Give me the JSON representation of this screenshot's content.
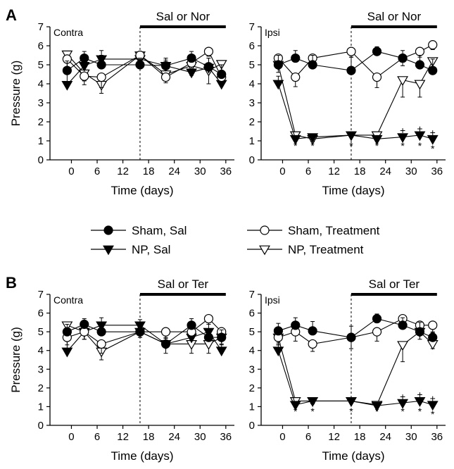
{
  "legend": [
    {
      "series": "sham_sal",
      "label": "Sham, Sal",
      "marker": "circle",
      "fill": "#000000"
    },
    {
      "series": "sham_treat",
      "label": "Sham, Treatment",
      "marker": "circle",
      "fill": "#ffffff"
    },
    {
      "series": "np_sal",
      "label": "NP, Sal",
      "marker": "triangle-down",
      "fill": "#000000"
    },
    {
      "series": "np_treat",
      "label": "NP, Treatment",
      "marker": "triangle-down",
      "fill": "#ffffff"
    }
  ],
  "chart_data": [
    {
      "type": "line",
      "panel": "A",
      "side": "Contra",
      "letter": "A",
      "corner_label": "Contra",
      "treatment_label": "Sal or Nor",
      "treatment_start": 16,
      "treatment_end": 36,
      "xlabel": "Time (days)",
      "ylabel": "Pressure (g)",
      "xlim": [
        -5,
        38
      ],
      "ylim": [
        0,
        7
      ],
      "xticks": [
        0,
        6,
        12,
        18,
        24,
        30,
        36
      ],
      "yticks": [
        0,
        1,
        2,
        3,
        4,
        5,
        6,
        7
      ],
      "x": [
        -1,
        3,
        7,
        16,
        22,
        28,
        32,
        35
      ],
      "series": [
        {
          "key": "sham_sal",
          "values": [
            4.7,
            5.35,
            5.0,
            5.0,
            4.95,
            5.35,
            4.9,
            4.5
          ],
          "errors": [
            0.5,
            0.35,
            0.5,
            0.35,
            0.4,
            0.35,
            0.45,
            0.5
          ]
        },
        {
          "key": "sham_treat",
          "values": [
            5.3,
            4.4,
            4.35,
            5.5,
            4.35,
            5.1,
            5.7,
            4.35
          ],
          "errors": [
            0.45,
            0.45,
            0.55,
            0.35,
            0.3,
            0.4,
            0.25,
            0.45
          ]
        },
        {
          "key": "np_sal",
          "values": [
            3.95,
            4.95,
            5.3,
            5.3,
            4.95,
            4.6,
            4.85,
            4.0
          ],
          "errors": [
            0.7,
            0.5,
            0.45,
            0.35,
            0.3,
            0.45,
            0.5,
            0.35
          ]
        },
        {
          "key": "np_treat",
          "values": [
            5.55,
            4.55,
            3.95,
            5.5,
            4.5,
            4.95,
            4.7,
            5.05
          ],
          "errors": [
            0.3,
            0.4,
            0.45,
            0.4,
            0.35,
            0.5,
            0.7,
            0.35
          ]
        }
      ],
      "annotations": []
    },
    {
      "type": "line",
      "panel": "A",
      "side": "Ipsi",
      "letter": "",
      "corner_label": "Ipsi",
      "treatment_label": "Sal or Nor",
      "treatment_start": 16,
      "treatment_end": 36,
      "xlabel": "Time (days)",
      "ylabel": "",
      "xlim": [
        -5,
        38
      ],
      "ylim": [
        0,
        7
      ],
      "xticks": [
        0,
        6,
        12,
        18,
        24,
        30,
        36
      ],
      "yticks": [
        0,
        1,
        2,
        3,
        4,
        5,
        6,
        7
      ],
      "x": [
        -1,
        3,
        7,
        16,
        22,
        28,
        32,
        35
      ],
      "series": [
        {
          "key": "sham_sal",
          "values": [
            5.0,
            5.35,
            5.0,
            4.7,
            5.7,
            5.35,
            5.0,
            4.7
          ],
          "errors": [
            0.5,
            0.4,
            0.5,
            0.7,
            0.25,
            0.4,
            0.5,
            0.6
          ]
        },
        {
          "key": "sham_treat",
          "values": [
            5.35,
            4.35,
            5.35,
            5.7,
            4.35,
            5.35,
            5.7,
            6.05
          ],
          "errors": [
            0.4,
            0.5,
            0.4,
            0.3,
            0.55,
            0.4,
            0.3,
            0.25
          ]
        },
        {
          "key": "np_sal",
          "values": [
            4.0,
            1.1,
            1.2,
            1.3,
            1.1,
            1.2,
            1.3,
            1.1
          ],
          "errors": [
            0.4,
            0.15,
            0.15,
            0.1,
            0.15,
            0.15,
            0.15,
            0.15
          ]
        },
        {
          "key": "np_treat",
          "values": [
            5.0,
            1.3,
            1.1,
            1.3,
            1.3,
            4.2,
            4.0,
            5.2
          ],
          "errors": [
            0.4,
            0.1,
            0.15,
            0.1,
            0.1,
            0.9,
            0.7,
            0.4
          ]
        }
      ],
      "annotations": [
        {
          "x": 3,
          "y": 0.75,
          "text": "*"
        },
        {
          "x": 7,
          "y": 0.75,
          "text": "*"
        },
        {
          "x": 16,
          "y": 0.75,
          "text": "*"
        },
        {
          "x": 22,
          "y": 0.75,
          "text": "*"
        },
        {
          "x": 28,
          "y": 0.75,
          "text": "*"
        },
        {
          "x": 32,
          "y": 0.75,
          "text": "*"
        },
        {
          "x": 35,
          "y": 0.6,
          "text": "*"
        },
        {
          "x": 28,
          "y": 1.55,
          "text": "+"
        },
        {
          "x": 32,
          "y": 1.65,
          "text": "+"
        },
        {
          "x": 35,
          "y": 1.45,
          "text": "+"
        }
      ]
    },
    {
      "type": "line",
      "panel": "B",
      "side": "Contra",
      "letter": "B",
      "corner_label": "Contra",
      "treatment_label": "Sal or Ter",
      "treatment_start": 16,
      "treatment_end": 36,
      "xlabel": "Time (days)",
      "ylabel": "Pressure (g)",
      "xlim": [
        -5,
        38
      ],
      "ylim": [
        0,
        7
      ],
      "xticks": [
        0,
        6,
        12,
        18,
        24,
        30,
        36
      ],
      "yticks": [
        0,
        1,
        2,
        3,
        4,
        5,
        6,
        7
      ],
      "x": [
        -1,
        3,
        7,
        16,
        22,
        28,
        32,
        35
      ],
      "series": [
        {
          "key": "sham_sal",
          "values": [
            5.0,
            5.4,
            5.0,
            5.0,
            4.35,
            5.35,
            4.7,
            4.7
          ],
          "errors": [
            0.4,
            0.3,
            0.5,
            0.3,
            0.3,
            0.35,
            0.4,
            0.4
          ]
        },
        {
          "key": "sham_treat",
          "values": [
            4.7,
            5.0,
            4.35,
            5.0,
            5.0,
            5.0,
            5.7,
            5.0
          ],
          "errors": [
            0.4,
            0.4,
            0.5,
            0.3,
            0.3,
            0.4,
            0.3,
            0.3
          ]
        },
        {
          "key": "np_sal",
          "values": [
            3.95,
            5.0,
            5.35,
            5.35,
            4.35,
            4.7,
            5.0,
            4.0
          ],
          "errors": [
            0.6,
            0.5,
            0.4,
            0.3,
            0.5,
            0.5,
            0.4,
            0.35
          ]
        },
        {
          "key": "np_treat",
          "values": [
            5.35,
            5.0,
            3.95,
            5.0,
            4.35,
            4.35,
            4.35,
            4.7
          ],
          "errors": [
            0.4,
            0.4,
            0.45,
            0.3,
            0.5,
            0.5,
            0.5,
            0.4
          ]
        }
      ],
      "annotations": []
    },
    {
      "type": "line",
      "panel": "B",
      "side": "Ipsi",
      "letter": "",
      "corner_label": "Ipsi",
      "treatment_label": "Sal or Ter",
      "treatment_start": 16,
      "treatment_end": 36,
      "xlabel": "Time (days)",
      "ylabel": "",
      "xlim": [
        -5,
        38
      ],
      "ylim": [
        0,
        7
      ],
      "xticks": [
        0,
        6,
        12,
        18,
        24,
        30,
        36
      ],
      "yticks": [
        0,
        1,
        2,
        3,
        4,
        5,
        6,
        7
      ],
      "x": [
        -1,
        3,
        7,
        16,
        22,
        28,
        32,
        35
      ],
      "series": [
        {
          "key": "sham_sal",
          "values": [
            5.05,
            5.35,
            5.05,
            4.7,
            5.7,
            5.35,
            5.0,
            4.7
          ],
          "errors": [
            0.4,
            0.4,
            0.5,
            0.6,
            0.25,
            0.4,
            0.5,
            0.3
          ]
        },
        {
          "key": "sham_treat",
          "values": [
            4.7,
            5.0,
            4.35,
            4.7,
            5.0,
            5.7,
            5.35,
            5.35
          ],
          "errors": [
            0.4,
            0.5,
            0.4,
            0.6,
            0.5,
            0.25,
            0.4,
            0.4
          ]
        },
        {
          "key": "np_sal",
          "values": [
            4.0,
            1.1,
            1.3,
            1.3,
            1.05,
            1.2,
            1.3,
            1.1
          ],
          "errors": [
            0.4,
            0.15,
            0.15,
            0.1,
            0.1,
            0.15,
            0.15,
            0.15
          ]
        },
        {
          "key": "np_treat",
          "values": [
            4.7,
            1.3,
            1.3,
            1.3,
            1.1,
            4.3,
            5.0,
            4.35
          ],
          "errors": [
            0.4,
            0.1,
            0.15,
            0.1,
            0.1,
            0.9,
            0.4,
            0.25
          ]
        }
      ],
      "annotations": [
        {
          "x": 3,
          "y": 0.75,
          "text": "*"
        },
        {
          "x": 7,
          "y": 0.75,
          "text": "*"
        },
        {
          "x": 16,
          "y": 0.75,
          "text": "*"
        },
        {
          "x": 22,
          "y": 0.75,
          "text": "*"
        },
        {
          "x": 28,
          "y": 0.75,
          "text": "*"
        },
        {
          "x": 32,
          "y": 0.75,
          "text": "*"
        },
        {
          "x": 35,
          "y": 0.6,
          "text": "*"
        },
        {
          "x": 28,
          "y": 1.55,
          "text": "+"
        },
        {
          "x": 32,
          "y": 1.65,
          "text": "+"
        },
        {
          "x": 35,
          "y": 1.45,
          "text": "+"
        }
      ]
    }
  ]
}
